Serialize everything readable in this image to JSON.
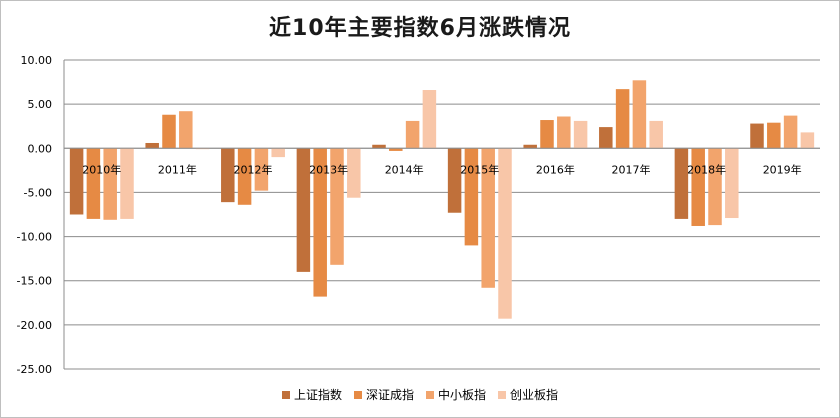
{
  "chart_data": {
    "type": "bar",
    "title": "近10年主要指数6月涨跌情况",
    "categories": [
      "2010年",
      "2011年",
      "2012年",
      "2013年",
      "2014年",
      "2015年",
      "2016年",
      "2017年",
      "2018年",
      "2019年"
    ],
    "series": [
      {
        "name": "上证指数",
        "color": "#c0703a",
        "values": [
          -7.5,
          0.6,
          -6.1,
          -14.0,
          0.4,
          -7.3,
          0.4,
          2.4,
          -8.0,
          2.8
        ]
      },
      {
        "name": "深证成指",
        "color": "#e68a44",
        "values": [
          -8.0,
          3.8,
          -6.4,
          -16.8,
          -0.3,
          -11.0,
          3.2,
          6.7,
          -8.8,
          2.9
        ]
      },
      {
        "name": "中小板指",
        "color": "#f2a46c",
        "values": [
          -8.1,
          4.2,
          -4.8,
          -13.2,
          3.1,
          -15.8,
          3.6,
          7.7,
          -8.7,
          3.7
        ]
      },
      {
        "name": "创业板指",
        "color": "#f8c6a8",
        "values": [
          -8.0,
          -0.1,
          -1.0,
          -5.6,
          6.6,
          -19.3,
          3.1,
          3.1,
          -7.9,
          1.8
        ]
      }
    ],
    "yticks": [
      "10.00",
      "5.00",
      "0.00",
      "-5.00",
      "-10.00",
      "-15.00",
      "-20.00",
      "-25.00"
    ],
    "ylim": [
      -25,
      10
    ],
    "grid": true,
    "legend_position": "bottom"
  }
}
